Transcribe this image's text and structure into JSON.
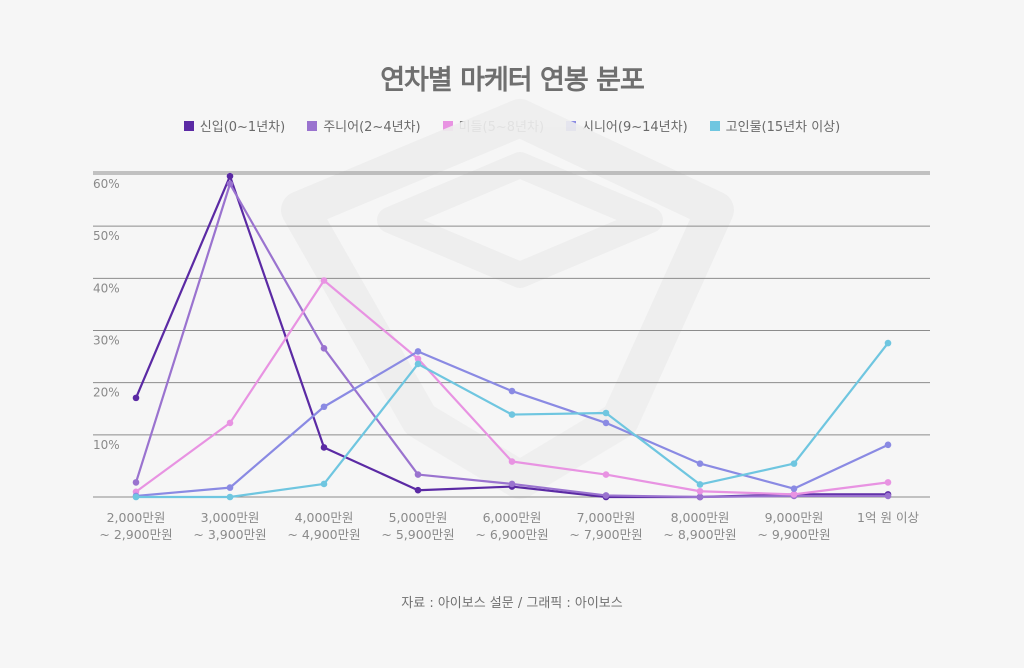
{
  "chart_data": {
    "type": "line",
    "title": "연차별 마케터 연봉 분포",
    "categories": [
      [
        "2,000만원",
        "~ 2,900만원"
      ],
      [
        "3,000만원",
        "~ 3,900만원"
      ],
      [
        "4,000만원",
        "~ 4,900만원"
      ],
      [
        "5,000만원",
        "~ 5,900만원"
      ],
      [
        "6,000만원",
        "~ 6,900만원"
      ],
      [
        "7,000만원",
        "~ 7,900만원"
      ],
      [
        "8,000만원",
        "~ 8,900만원"
      ],
      [
        "9,000만원",
        "~ 9,900만원"
      ],
      [
        "1억 원 이상"
      ]
    ],
    "y_ticks": [
      "10%",
      "20%",
      "30%",
      "40%",
      "50%",
      "60%"
    ],
    "ylim": [
      0,
      60
    ],
    "grid": true,
    "legend_position": "top-center",
    "series": [
      {
        "name": "신입(0~1년차)",
        "color": "#5b2aa4",
        "values": [
          19,
          61.5,
          9.5,
          1.3,
          2.0,
          0,
          0,
          0.5,
          0.5
        ]
      },
      {
        "name": "주니어(2~4년차)",
        "color": "#9a73cf",
        "values": [
          2.8,
          60,
          28.5,
          4.3,
          2.5,
          0.3,
          0,
          0.2,
          0.2
        ]
      },
      {
        "name": "미들(5~8년차)",
        "color": "#e893e2",
        "values": [
          1,
          14.2,
          41.5,
          26.5,
          6.8,
          4.3,
          1.1,
          0.5,
          2.8
        ]
      },
      {
        "name": "시니어(9~14년차)",
        "color": "#8a8ae3",
        "values": [
          0.2,
          1.8,
          17.3,
          27.9,
          20.3,
          14.2,
          6.4,
          1.6,
          10
        ]
      },
      {
        "name": "고인물(15년차 이상)",
        "color": "#6fc6e0",
        "values": [
          0,
          0,
          2.5,
          25.5,
          15.8,
          16.1,
          2.4,
          6.4,
          29.5
        ]
      }
    ]
  },
  "source_text": "자료 : 아이보스 설문 / 그래픽 : 아이보스"
}
